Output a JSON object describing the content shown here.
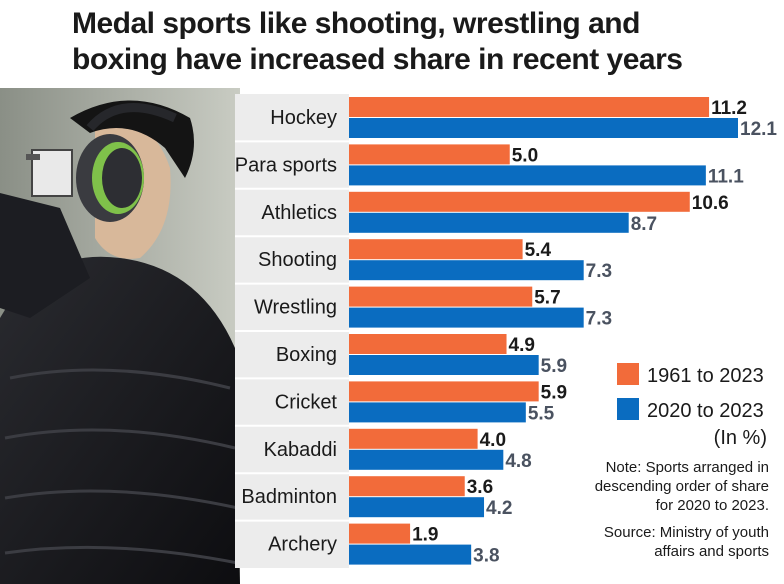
{
  "title_line1": "Medal sports like shooting, wrestling and",
  "title_line2": "boxing have increased share in recent years",
  "note": "Note: Sports arranged in descending order of share for 2020 to 2023.",
  "source": "Source: Ministry of youth affairs and sports",
  "colors": {
    "orange": "#f26b3a",
    "blue": "#0a6cc0",
    "panel": "#ececec",
    "divider": "#ffffff"
  },
  "chart_data": {
    "type": "bar",
    "orientation": "horizontal",
    "title": "Medal sports like shooting, wrestling and boxing have increased share in recent years",
    "unit": "(In %)",
    "categories": [
      "Hockey",
      "Para sports",
      "Athletics",
      "Shooting",
      "Wrestling",
      "Boxing",
      "Cricket",
      "Kabaddi",
      "Badminton",
      "Archery"
    ],
    "series": [
      {
        "name": "1961 to 2023",
        "color": "#f26b3a",
        "values": [
          11.2,
          5.0,
          10.6,
          5.4,
          5.7,
          4.9,
          5.9,
          4.0,
          3.6,
          1.9
        ],
        "labels": [
          "11.2",
          "5.0",
          "10.6",
          "5.4",
          "5.7",
          "4.9",
          "5.9",
          "4.0",
          "3.6",
          "1.9"
        ]
      },
      {
        "name": "2020 to 2023",
        "color": "#0a6cc0",
        "values": [
          12.1,
          11.1,
          8.7,
          7.3,
          7.3,
          5.9,
          5.5,
          4.8,
          4.2,
          3.8
        ],
        "labels": [
          "12.1",
          "11.1",
          "8.7",
          "7.3",
          "7.3",
          "5.9",
          "5.5",
          "4.8",
          "4.2",
          "3.8"
        ]
      }
    ],
    "legend_position": "right",
    "grid": false
  }
}
